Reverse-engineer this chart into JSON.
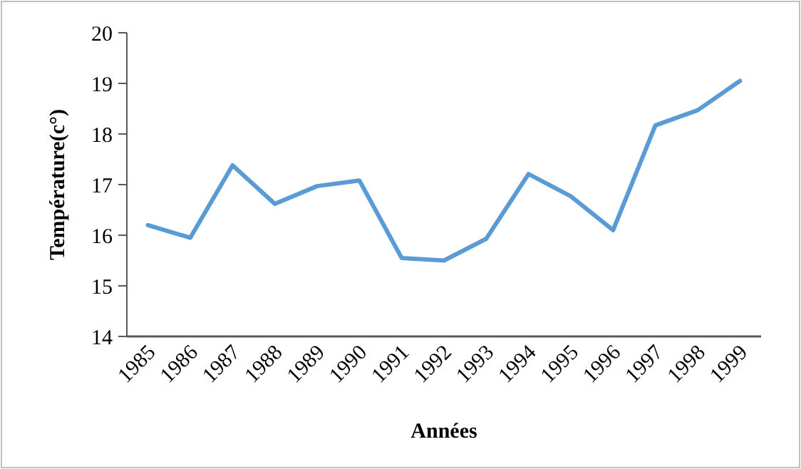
{
  "chart_data": {
    "type": "line",
    "xlabel": "Années",
    "ylabel": "Température(c°)",
    "categories": [
      "1985",
      "1986",
      "1987",
      "1988",
      "1989",
      "1990",
      "1991",
      "1992",
      "1993",
      "1994",
      "1995",
      "1996",
      "1997",
      "1998",
      "1999"
    ],
    "series": [
      {
        "color": "#5b9bd5",
        "values": [
          16.2,
          15.95,
          17.38,
          16.62,
          16.97,
          17.08,
          15.55,
          15.5,
          15.93,
          17.21,
          16.77,
          16.1,
          18.17,
          18.47,
          19.05
        ]
      }
    ],
    "ylim": [
      14,
      20
    ],
    "yticks": [
      14,
      15,
      16,
      17,
      18,
      19,
      20
    ],
    "grid": false,
    "marker": "none",
    "line_style": "solid"
  }
}
